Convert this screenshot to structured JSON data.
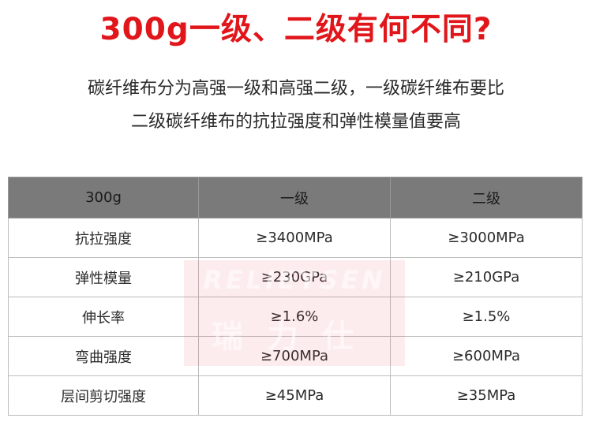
{
  "title": "300g一级、二级有何不同?",
  "intro": {
    "line1": "碳纤维布分为高强一级和高强二级，一级碳纤维布要比",
    "line2": "二级碳纤维布的抗拉强度和弹性模量值要高"
  },
  "table": {
    "headers": [
      "300g",
      "一级",
      "二级"
    ],
    "rows": [
      [
        "抗拉强度",
        "≥3400MPa",
        "≥3000MPa"
      ],
      [
        "弹性模量",
        "≥230GPa",
        "≥210GPa"
      ],
      [
        "伸长率",
        "≥1.6%",
        "≥1.5%"
      ],
      [
        "弯曲强度",
        "≥700MPa",
        "≥600MPa"
      ],
      [
        "层间剪切强度",
        "≥45MPa",
        "≥35MPa"
      ]
    ]
  },
  "watermark": {
    "latin": "RELIEYSEN",
    "chinese": "瑞力仕"
  },
  "colors": {
    "title": "#e1161b",
    "header_bg": "#7a7a7a",
    "border": "#bdbdbd"
  }
}
